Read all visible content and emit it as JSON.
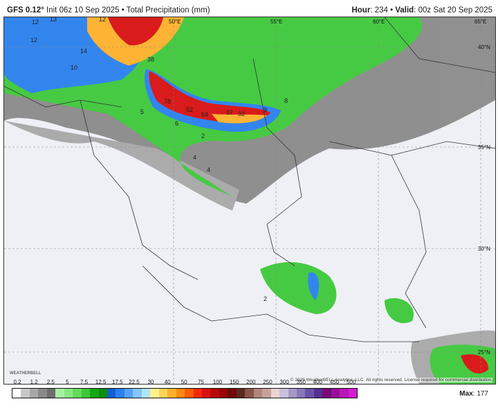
{
  "header": {
    "model": "GFS 0.12°",
    "init": "Init 06z 10 Sep 2025",
    "sep": "•",
    "product": "Total Precipitation (mm)",
    "hour_label": "Hour",
    "hour": "234",
    "valid_label": "Valid",
    "valid": "00z Sat 20 Sep 2025"
  },
  "map": {
    "lon_labels": [
      "50°E",
      "55°E",
      "60°E",
      "65°E"
    ],
    "lat_labels": [
      "40°N",
      "35°N",
      "30°N",
      "25°N"
    ],
    "value_labels": [
      "12",
      "13",
      "12",
      "12",
      "14",
      "10",
      "38",
      "78",
      "52",
      "54",
      "37",
      "32",
      "9",
      "8",
      "5",
      "6",
      "2",
      "4",
      "4",
      "2"
    ],
    "copyright": "© 2025 WeatherBELL Analytics, LLC. All rights reserved. License required for commercial distribution.",
    "logo": "WEATHERBELL"
  },
  "colorbar": {
    "ticks": [
      "0.2",
      "1.2",
      "2.5",
      "5",
      "7.5",
      "12.5",
      "17.5",
      "22.5",
      "30",
      "40",
      "50",
      "75",
      "100",
      "150",
      "200",
      "250",
      "300",
      "350",
      "400",
      "450",
      "500"
    ],
    "colors": [
      "#ffffff",
      "#c8c8c8",
      "#a8a8a8",
      "#8a8a8a",
      "#6e6e6e",
      "#a6f0a0",
      "#86e87e",
      "#62dc5a",
      "#3ec83a",
      "#14a814",
      "#0a8f0a",
      "#1060d0",
      "#2a80ee",
      "#52a2f8",
      "#86c4fa",
      "#b0e4fa",
      "#fff08a",
      "#ffd45a",
      "#ffb02a",
      "#ff8a10",
      "#ff5a08",
      "#f02a08",
      "#d81010",
      "#b80808",
      "#980606",
      "#700a0a",
      "#5a2a20",
      "#8a5448",
      "#b0857c",
      "#c8a09a",
      "#ead4d0",
      "#c8c0dc",
      "#a898c8",
      "#8878b8",
      "#6a52a8",
      "#54308e",
      "#7a0a7a",
      "#98109a",
      "#b818b8",
      "#d41ad4"
    ],
    "max_label": "Max",
    "max_value": "177"
  }
}
